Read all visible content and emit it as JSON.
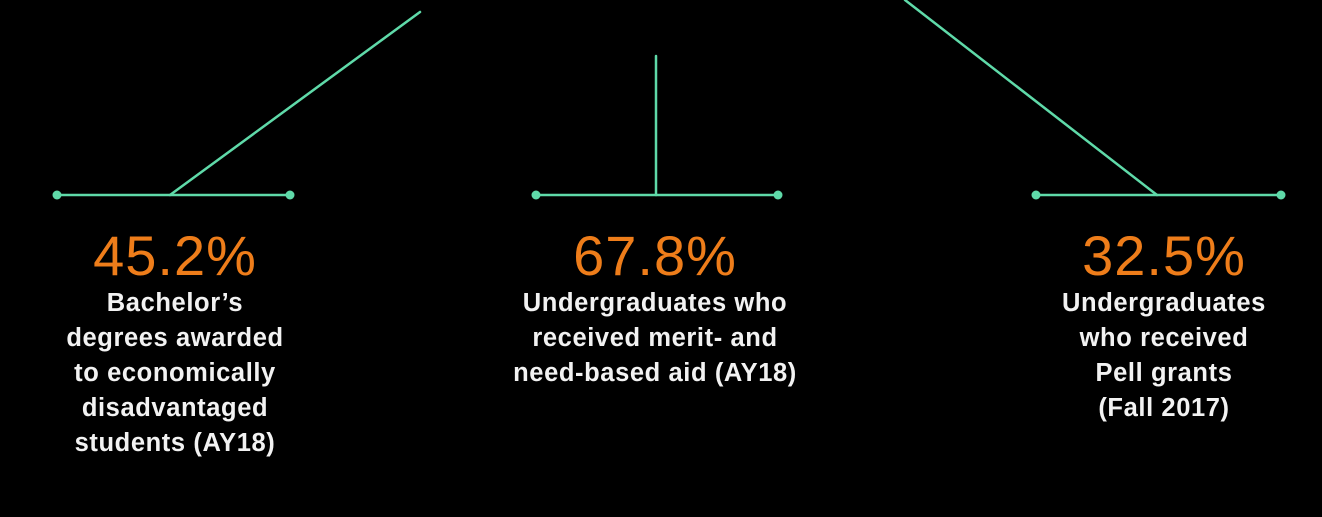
{
  "colors": {
    "background": "#000000",
    "connector": "#5fdaa9",
    "value": "#ee7d1a",
    "label": "#f2f2f2"
  },
  "stats": [
    {
      "value": "45.2%",
      "label": "Bachelor’s\ndegrees awarded\nto economically\ndisadvantaged\nstudents (AY18)"
    },
    {
      "value": "67.8%",
      "label": "Undergraduates who\nreceived merit- and\nneed-based aid (AY18)"
    },
    {
      "value": "32.5%",
      "label": "Undergraduates\nwho received\nPell grants\n(Fall 2017)"
    }
  ]
}
